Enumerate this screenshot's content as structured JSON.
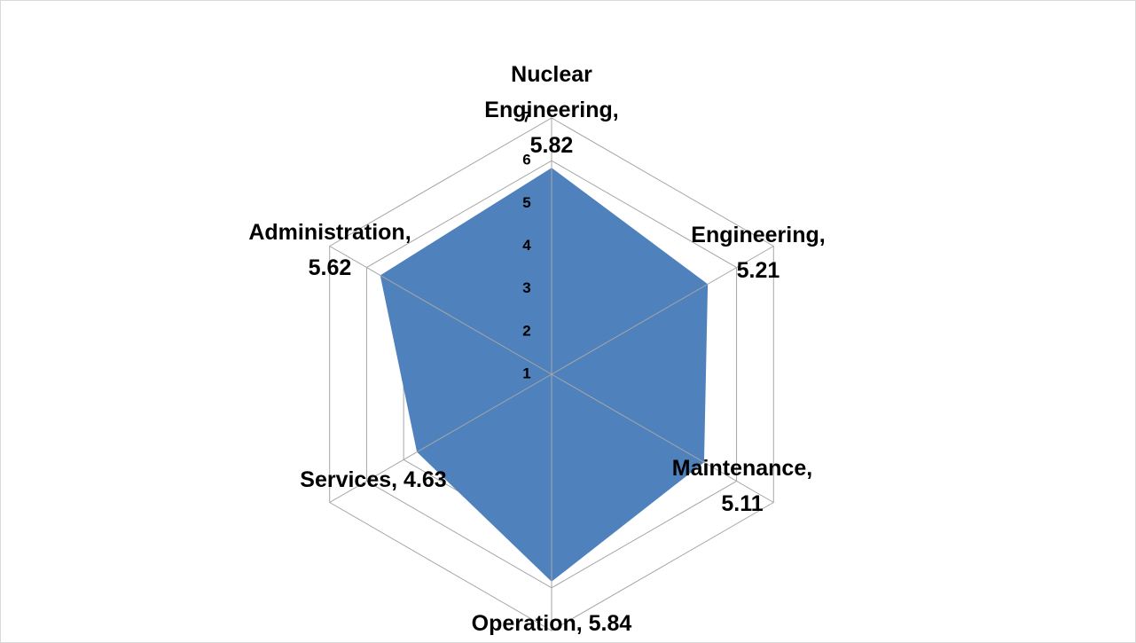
{
  "chart_data": {
    "type": "radar",
    "categories": [
      "Nuclear Engineering",
      "Engineering",
      "Maintenance",
      "Operation",
      "Services",
      "Administration"
    ],
    "values": [
      5.82,
      5.21,
      5.11,
      5.84,
      4.63,
      5.62
    ],
    "label_separator": ",",
    "color": "#4f81bd",
    "ylim": [
      1,
      7
    ],
    "yticks": [
      1,
      2,
      3,
      4,
      5,
      6,
      7
    ],
    "grid": true
  }
}
